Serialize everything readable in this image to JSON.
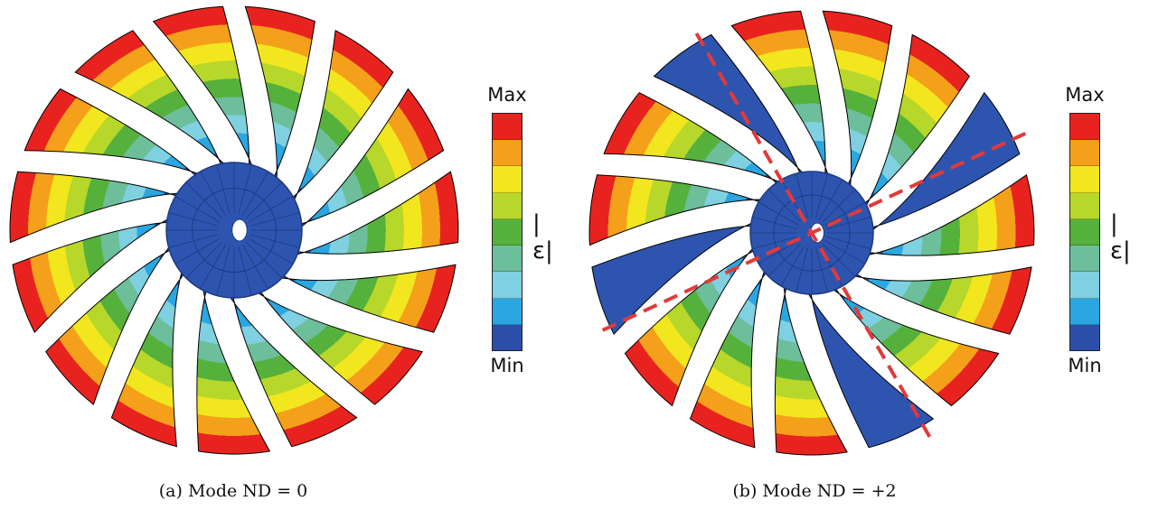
{
  "panels": [
    {
      "caption": "(a) Mode ND = 0",
      "nodal_lines": []
    },
    {
      "caption": "(b) Mode ND = +2",
      "nodal_lines": [
        -25,
        60
      ]
    }
  ],
  "legend": {
    "max_label": "Max",
    "min_label": "Min",
    "quantity": "|ε|",
    "colors": [
      "#e8231f",
      "#f5a01a",
      "#f2e61e",
      "#b7d72a",
      "#56b13c",
      "#6dbe9a",
      "#7fd0e0",
      "#2aa6e0",
      "#2b4fa8"
    ]
  },
  "colors": {
    "hub": "#2d55b0",
    "nodal_line": "#e23a3a",
    "outline": "#000000"
  },
  "blade_count": 15
}
